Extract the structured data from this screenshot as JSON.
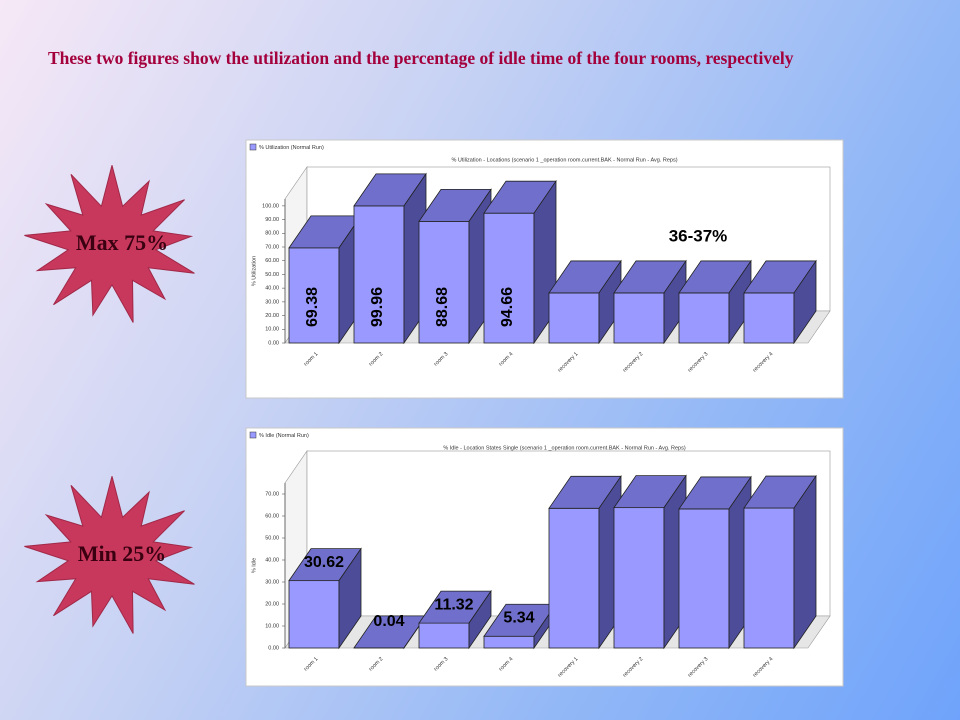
{
  "slide": {
    "title": "These two figures show the utilization and the percentage of idle time of the four rooms, respectively",
    "badges": [
      "Max 75%",
      "Min 25%"
    ]
  },
  "chart_data": [
    {
      "type": "bar",
      "legend": "% Utilization (Normal Run)",
      "title": "% Utilization - Locations (scenario 1 _operation room.current.BAK - Normal Run - Avg. Reps)",
      "ylabel": "% Utilization",
      "categories": [
        "room 1",
        "room 2",
        "room 3",
        "room 4",
        "recovery 1",
        "recovery 2",
        "recovery 3",
        "recovery 4"
      ],
      "values": [
        69.38,
        99.96,
        88.68,
        94.66,
        36.5,
        36.5,
        36.5,
        36.5
      ],
      "value_labels": [
        "69.38",
        "99.96",
        "88.68",
        "94.66",
        null,
        null,
        null,
        null
      ],
      "annotation": "36-37%",
      "color": "#9999ff",
      "ylim": [
        0,
        105
      ],
      "yticks": [
        {
          "value": 0,
          "label": "0.00"
        },
        {
          "value": 10,
          "label": "10.00"
        },
        {
          "value": 20,
          "label": "20.00"
        },
        {
          "value": 30,
          "label": "30.00"
        },
        {
          "value": 40,
          "label": "40.00"
        },
        {
          "value": 50,
          "label": "50.00"
        },
        {
          "value": 60,
          "label": "60.00"
        },
        {
          "value": 70,
          "label": "70.00"
        },
        {
          "value": 80,
          "label": "80.00"
        },
        {
          "value": 90,
          "label": "90.00"
        },
        {
          "value": 100,
          "label": "100.00"
        }
      ]
    },
    {
      "type": "bar",
      "legend": "% Idle (Normal Run)",
      "title": "% Idle - Location States Single (scenario 1 _operation room.current.BAK - Normal Run - Avg. Reps)",
      "ylabel": "% Idle",
      "categories": [
        "room 1",
        "room 2",
        "room 3",
        "room 4",
        "recovery 1",
        "recovery 2",
        "recovery 3",
        "recovery 4"
      ],
      "values": [
        30.62,
        0.04,
        11.32,
        5.34,
        63.5,
        63.8,
        63.2,
        63.6
      ],
      "value_labels": [
        "30.62",
        "0.04",
        "11.32",
        "5.34",
        null,
        null,
        null,
        null
      ],
      "color": "#9999ff",
      "ylim": [
        0,
        75
      ],
      "yticks": [
        {
          "value": 0,
          "label": "0.00"
        },
        {
          "value": 10,
          "label": "10.00"
        },
        {
          "value": 20,
          "label": "20.00"
        },
        {
          "value": 30,
          "label": "30.00"
        },
        {
          "value": 40,
          "label": "40.00"
        },
        {
          "value": 50,
          "label": "50.00"
        },
        {
          "value": 60,
          "label": "60.00"
        },
        {
          "value": 70,
          "label": "70.00"
        }
      ]
    }
  ]
}
